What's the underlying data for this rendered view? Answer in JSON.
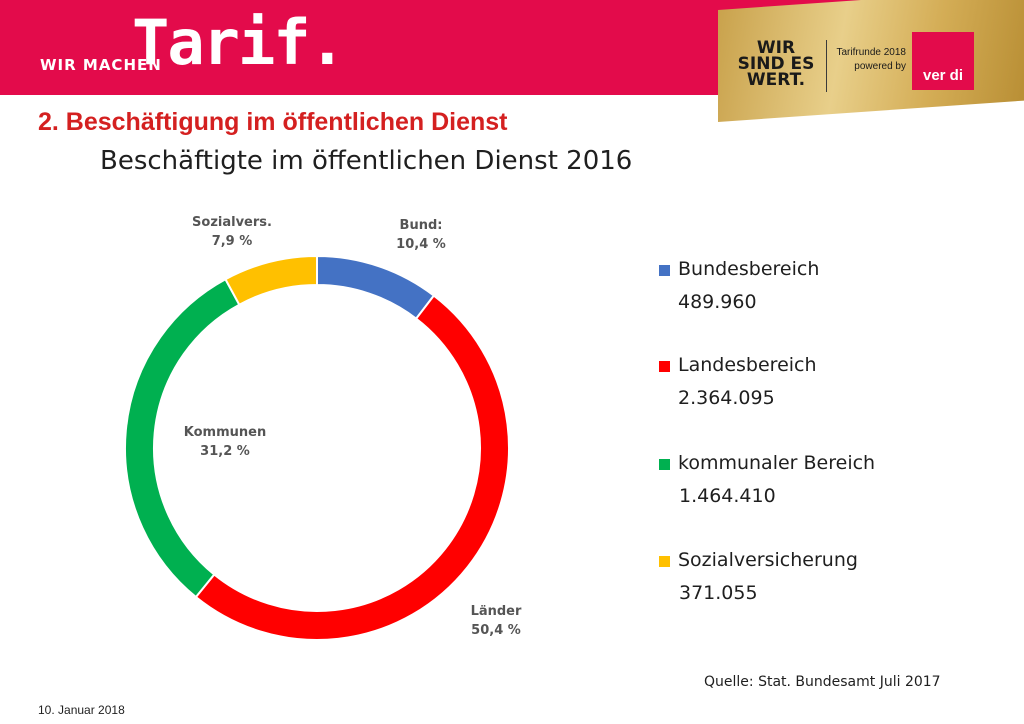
{
  "header": {
    "prefix": "WIR MACHEN",
    "brand": "Tarif.",
    "badge_text": "WIR SIND ES WERT.",
    "badge_line1": "Tarifrunde 2018",
    "badge_line2": "powered by",
    "verdi_logo": "ver di"
  },
  "section_title": "2. Beschäftigung im öffentlichen Dienst",
  "source": "Quelle: Stat. Bundesamt Juli 2017",
  "date": "10. Januar 2018",
  "chart_data": {
    "type": "pie",
    "variant": "donut",
    "title": "Beschäftigte im öffentlichen Dienst 2016",
    "legend_position": "right",
    "slices": [
      {
        "label": "Bund:",
        "percent_text": "10,4  %",
        "percent": 10.4,
        "legend": "Bundesbereich",
        "value_text": "489.960",
        "value": 489960,
        "color": "#4472c4"
      },
      {
        "label": "Länder",
        "percent_text": "50,4  %",
        "percent": 50.4,
        "legend": "Landesbereich",
        "value_text": "2.364.095",
        "value": 2364095,
        "color": "#ff0000"
      },
      {
        "label": "Kommunen",
        "percent_text": "31,2  %",
        "percent": 31.2,
        "legend": "kommunaler Bereich",
        "value_text": "1.464.410",
        "value": 1464410,
        "color": "#00b050"
      },
      {
        "label": "Sozialvers.",
        "percent_text": "7,9  %",
        "percent": 7.9,
        "legend": "Sozialversicherung",
        "value_text": "371.055",
        "value": 371055,
        "color": "#ffc000"
      }
    ]
  }
}
